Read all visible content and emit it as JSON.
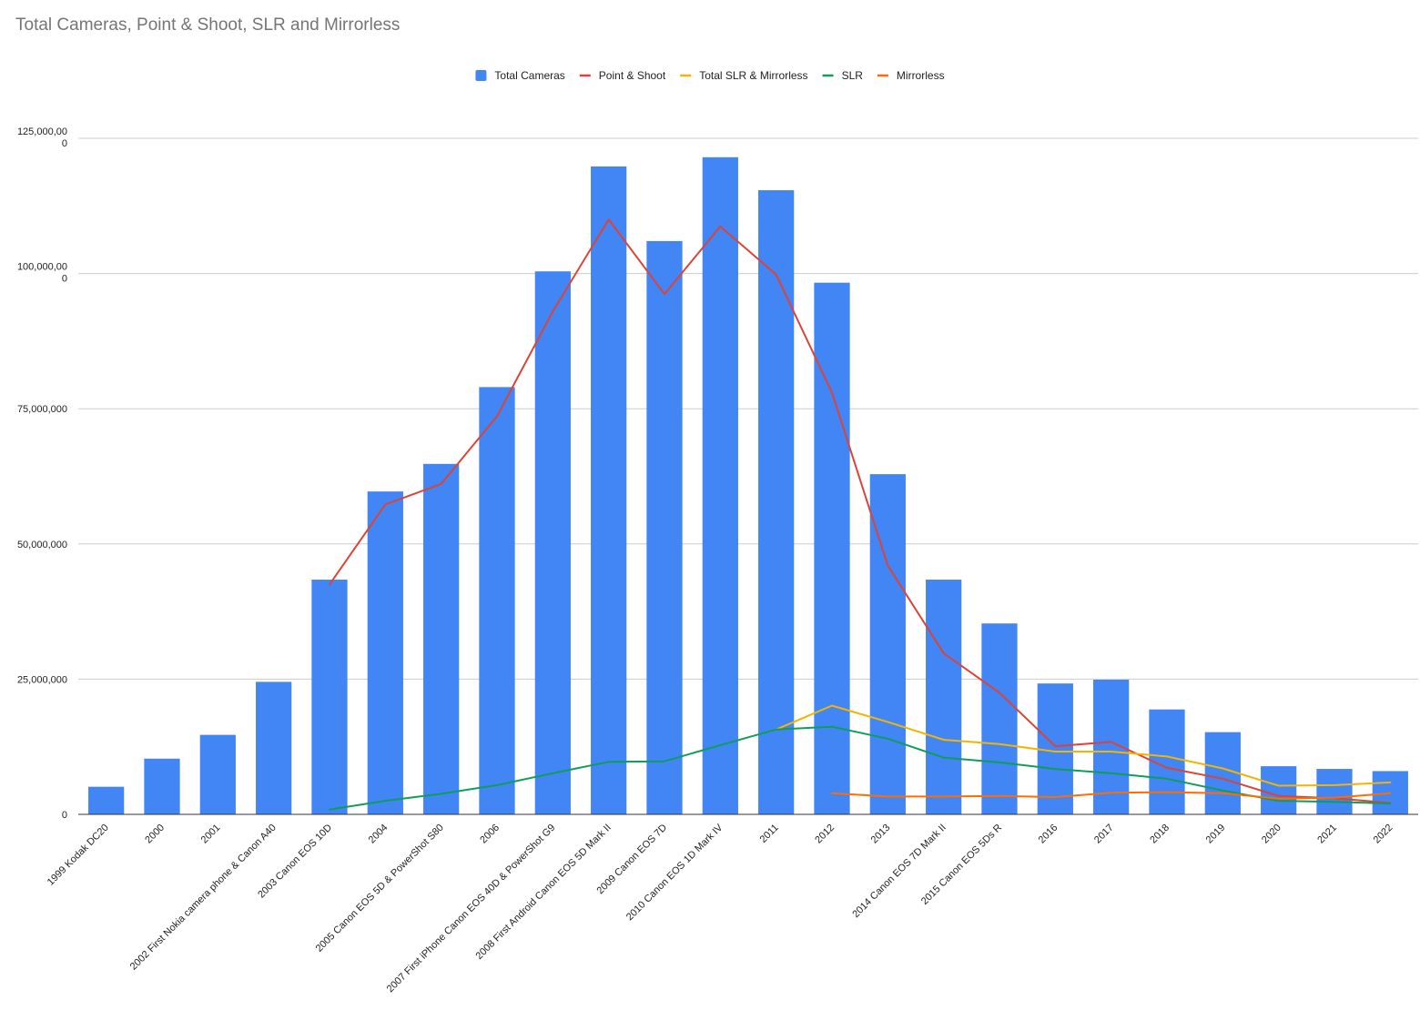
{
  "chart_data": {
    "type": "bar",
    "title": "Total Cameras, Point & Shoot, SLR and Mirrorless",
    "xlabel": "",
    "ylabel": "",
    "ylim": [
      0,
      125000000
    ],
    "y_ticks": [
      {
        "value": 0,
        "label": "0"
      },
      {
        "value": 25000000,
        "label": "25,000,000"
      },
      {
        "value": 50000000,
        "label": "50,000,000"
      },
      {
        "value": 75000000,
        "label": "75,000,000"
      },
      {
        "value": 100000000,
        "label": "100,000,00\n0"
      },
      {
        "value": 125000000,
        "label": "125,000,00\n0"
      }
    ],
    "grid": true,
    "legend_position": "top-center",
    "categories": [
      "1999 Kodak DC20",
      "2000",
      "2001",
      "2002 First Nokia camera phone & Canon A40",
      "2003 Canon EOS 10D",
      "2004",
      "2005 Canon EOS 5D & PowerShot S80",
      "2006",
      "2007 First iPhone Canon EOS 40D & PowerShot G9",
      "2008 First Android Canon EOS 5D Mark II",
      "2009 Canon EOS 7D",
      "2010 Canon EOS 1D Mark IV",
      "2011",
      "2012",
      "2013",
      "2014 Canon EOS 7D Mark II",
      "2015 Canon EOS 5Ds R",
      "2016",
      "2017",
      "2018",
      "2019",
      "2020",
      "2021",
      "2022"
    ],
    "series": [
      {
        "name": "Total Cameras",
        "kind": "bar",
        "color": "#4285f4",
        "values": [
          5100000,
          10300000,
          14700000,
          24500000,
          43400000,
          59700000,
          64800000,
          79000000,
          100400000,
          119800000,
          106000000,
          121500000,
          115400000,
          98300000,
          62900000,
          43400000,
          35300000,
          24200000,
          24900000,
          19400000,
          15200000,
          8900000,
          8400000,
          8000000
        ]
      },
      {
        "name": "Point & Shoot",
        "kind": "line",
        "color": "#db4437",
        "values": [
          null,
          null,
          null,
          null,
          42500000,
          57300000,
          61100000,
          73600000,
          93000000,
          110000000,
          96200000,
          108700000,
          99800000,
          78000000,
          46000000,
          29800000,
          22500000,
          12600000,
          13400000,
          8600000,
          6600000,
          3400000,
          3000000,
          2100000
        ]
      },
      {
        "name": "Total SLR & Mirrorless",
        "kind": "line",
        "color": "#f4b400",
        "values": [
          null,
          null,
          null,
          null,
          null,
          null,
          null,
          null,
          null,
          null,
          null,
          null,
          15700000,
          20100000,
          17100000,
          13800000,
          13000000,
          11600000,
          11600000,
          10700000,
          8500000,
          5300000,
          5400000,
          5900000
        ]
      },
      {
        "name": "SLR",
        "kind": "line",
        "color": "#0f9d58",
        "values": [
          null,
          null,
          null,
          null,
          900000,
          2500000,
          3800000,
          5400000,
          7600000,
          9700000,
          9800000,
          12800000,
          15700000,
          16200000,
          14000000,
          10500000,
          9600000,
          8400000,
          7600000,
          6600000,
          4400000,
          2500000,
          2300000,
          2000000
        ]
      },
      {
        "name": "Mirrorless",
        "kind": "line",
        "color": "#ff6d01",
        "values": [
          null,
          null,
          null,
          null,
          null,
          null,
          null,
          null,
          null,
          null,
          null,
          null,
          null,
          3900000,
          3300000,
          3300000,
          3400000,
          3200000,
          4000000,
          4100000,
          3900000,
          2900000,
          3100000,
          3900000
        ]
      }
    ]
  }
}
